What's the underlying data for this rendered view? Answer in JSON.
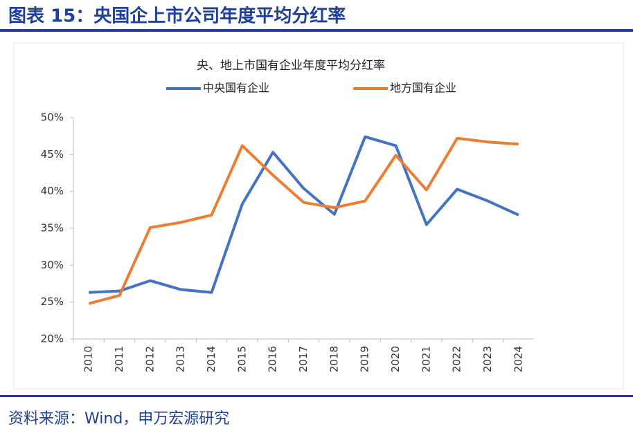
{
  "figure_title": "图表 15：央国企上市公司年度平均分红率",
  "source": "资料来源：Wind，申万宏源研究",
  "chart_data": {
    "type": "line",
    "title": "央、地上市国有企业年度平均分红率",
    "categories": [
      "2010",
      "2011",
      "2012",
      "2013",
      "2014",
      "2015",
      "2016",
      "2017",
      "2018",
      "2019",
      "2020",
      "2021",
      "2022",
      "2023",
      "2024"
    ],
    "series": [
      {
        "name": "中央国有企业",
        "color": "#4472c4",
        "values": [
          26.3,
          26.5,
          27.9,
          26.7,
          26.3,
          38.3,
          45.3,
          40.4,
          36.9,
          47.4,
          46.2,
          35.5,
          40.3,
          38.7,
          36.8
        ]
      },
      {
        "name": "地方国有企业",
        "color": "#ed7d31",
        "values": [
          24.8,
          25.9,
          35.1,
          35.8,
          36.8,
          46.2,
          42.2,
          38.5,
          37.8,
          38.7,
          44.9,
          40.2,
          47.2,
          46.7,
          46.4
        ]
      }
    ],
    "ylim": [
      20,
      50
    ],
    "yticks": [
      {
        "value": 20,
        "label": "20%"
      },
      {
        "value": 25,
        "label": "25%"
      },
      {
        "value": 30,
        "label": "30%"
      },
      {
        "value": 35,
        "label": "35%"
      },
      {
        "value": 40,
        "label": "40%"
      },
      {
        "value": 45,
        "label": "45%"
      },
      {
        "value": 50,
        "label": "50%"
      }
    ],
    "grid": false,
    "legend": "top"
  }
}
